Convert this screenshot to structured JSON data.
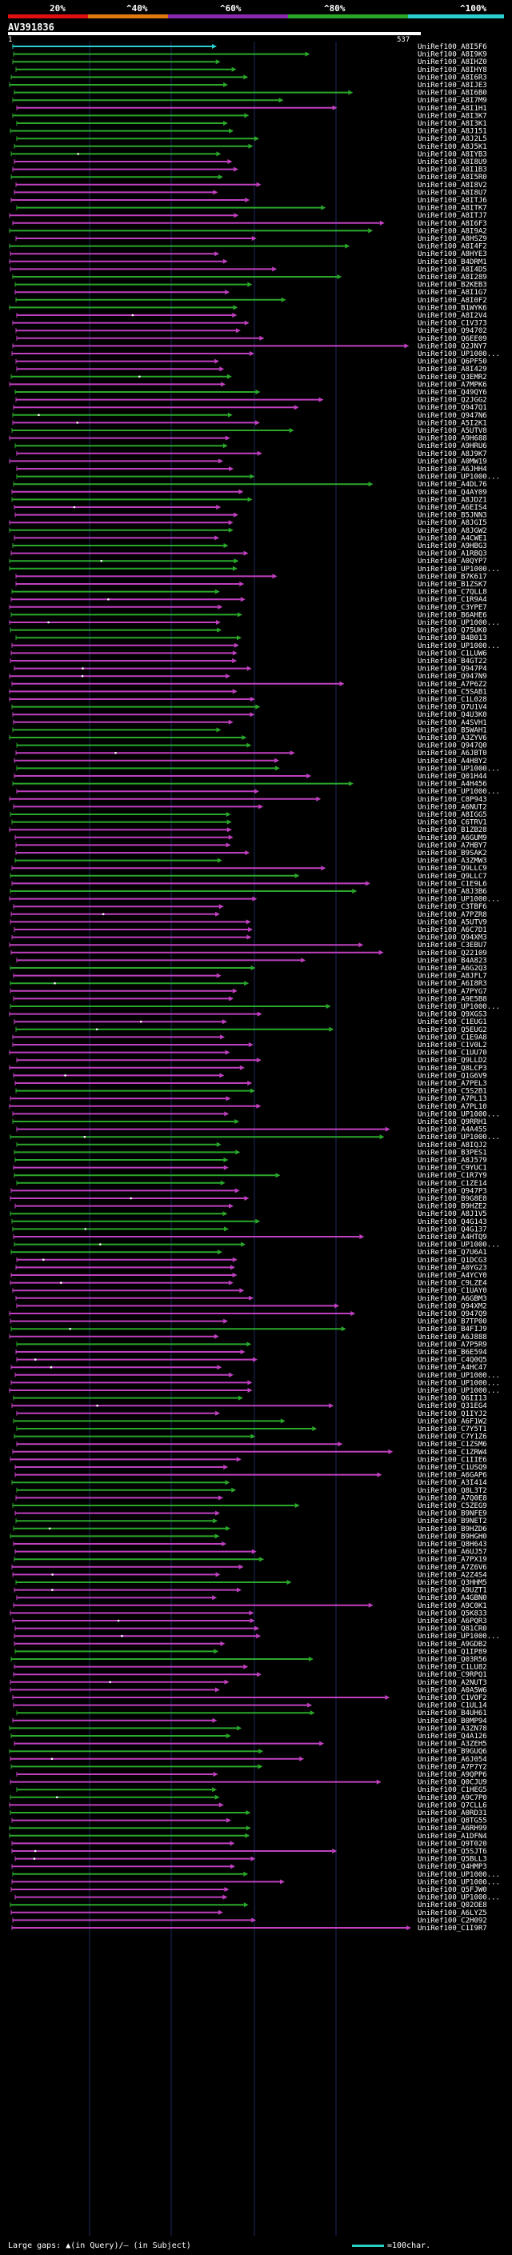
{
  "title": "AV391836",
  "legend": {
    "labels": [
      "20%",
      "^40%",
      "^60%",
      "^80%",
      "^100%"
    ],
    "colors": [
      "#e01010",
      "#e07a10",
      "#8a2ab0",
      "#2aa82a",
      "#2ad0d0"
    ]
  },
  "scale": {
    "start": "1",
    "end": "537"
  },
  "footer": {
    "left": "Large gaps: ▲(in Query)/— (in Subject)",
    "right": "=100char."
  },
  "hits": [
    "UniRef100_A8I5F6",
    "UniRef100_A8I9K9",
    "UniRef100_A8IHZ0",
    "UniRef100_A8IHY8",
    "UniRef100_A8I6R3",
    "UniRef100_A8IJE3",
    "UniRef100_A8I6B0",
    "UniRef100_A8I7M9",
    "UniRef100_A8I1H1",
    "UniRef100_A8I3K7",
    "UniRef100_A8I3K1",
    "UniRef100_A8J151",
    "UniRef100_A8J2L5",
    "UniRef100_A8J5K1",
    "UniRef100_A8IYB3",
    "UniRef100_A8I8U9",
    "UniRef100_A8I1B3",
    "UniRef100_A8I5R0",
    "UniRef100_A8I8V2",
    "UniRef100_A8I8U7",
    "UniRef100_A8ITJ6",
    "UniRef100_A8ITK7",
    "UniRef100_A8ITJ7",
    "UniRef100_A8I6F3",
    "UniRef100_A8I9A2",
    "UniRef100_A8HSZ9",
    "UniRef100_A8I4F2",
    "UniRef100_A8HYE3",
    "UniRef100_B4DRM1",
    "UniRef100_A8I4D5",
    "UniRef100_A8I289",
    "UniRef100_B2KEB3",
    "UniRef100_A8I1G7",
    "UniRef100_A8I0F2",
    "UniRef100_B1WYK6",
    "UniRef100_A8I2V4",
    "UniRef100_C1V373",
    "UniRef100_Q94702",
    "UniRef100_Q6EE09",
    "UniRef100_Q2JNY7",
    "UniRef100_UP1000...",
    "UniRef100_Q6PF50",
    "UniRef100_A8I429",
    "UniRef100_Q3EMR2",
    "UniRef100_A7MPK6",
    "UniRef100_Q49QY6",
    "UniRef100_Q2JGG2",
    "UniRef100_Q947Q1",
    "UniRef100_Q947N6",
    "UniRef100_A5I2K1",
    "UniRef100_A5UTV8",
    "UniRef100_A9H688",
    "UniRef100_A9HRU6",
    "UniRef100_A8J9K7",
    "UniRef100_A0MW19",
    "UniRef100_A6JHH4",
    "UniRef100_UP1000...",
    "UniRef100_A4DL76",
    "UniRef100_Q4AY09",
    "UniRef100_A8JDZ1",
    "UniRef100_A6EIS4",
    "UniRef100_B5JNN3",
    "UniRef100_A8JGI5",
    "UniRef100_A8JGW2",
    "UniRef100_A4CWE1",
    "UniRef100_A9HBG3",
    "UniRef100_A1RBQ3",
    "UniRef100_A0QYP7",
    "UniRef100_UP1000...",
    "UniRef100_B7K617",
    "UniRef100_B1ZSK7",
    "UniRef100_C7QLL8",
    "UniRef100_C1R9A4",
    "UniRef100_C3YPE7",
    "UniRef100_B6AHE6",
    "UniRef100_UP1000...",
    "UniRef100_Q75UK0",
    "UniRef100_B4B013",
    "UniRef100_UP1000...",
    "UniRef100_C1LUW6",
    "UniRef100_B4GT22",
    "UniRef100_Q947P4",
    "UniRef100_Q947N9",
    "UniRef100_A7P6Z2",
    "UniRef100_C5SAB1",
    "UniRef100_C1L028",
    "UniRef100_Q7U1V4",
    "UniRef100_Q4U3K0",
    "UniRef100_A4SVH1",
    "UniRef100_B5WAH1",
    "UniRef100_A3ZYV6",
    "UniRef100_Q947Q0",
    "UniRef100_A6JBT0",
    "UniRef100_A4H8Y2",
    "UniRef100_UP1000...",
    "UniRef100_Q01H44",
    "UniRef100_A4H456",
    "UniRef100_UP1000...",
    "UniRef100_C8P943",
    "UniRef100_A6NUT2",
    "UniRef100_A8IGG5",
    "UniRef100_C6TRV1",
    "UniRef100_B1ZB28",
    "UniRef100_A6GUM9",
    "UniRef100_A7HBY7",
    "UniRef100_B9SAK2",
    "UniRef100_A3ZMW3",
    "UniRef100_Q9LLC9",
    "UniRef100_Q9LLC7",
    "UniRef100_C1E9L6",
    "UniRef100_A8J3B6",
    "UniRef100_UP1000...",
    "UniRef100_C3TBF6",
    "UniRef100_A7PZR8",
    "UniRef100_A5UTV9",
    "UniRef100_A6C7D1",
    "UniRef100_Q94XM3",
    "UniRef100_C3EBU7",
    "UniRef100_Q22109",
    "UniRef100_B4A823",
    "UniRef100_A6G2Q3",
    "UniRef100_A8JFL7",
    "UniRef100_A6I8R3",
    "UniRef100_A7PYG7",
    "UniRef100_A9E5B8",
    "UniRef100_UP1000...",
    "UniRef100_Q9XGS3",
    "UniRef100_C1EUG1",
    "UniRef100_Q5EUG2",
    "UniRef100_C1E9A8",
    "UniRef100_C1V0L2",
    "UniRef100_C1UU70",
    "UniRef100_Q9LLD2",
    "UniRef100_Q8LCP3",
    "UniRef100_Q1G6V9",
    "UniRef100_A7PEL3",
    "UniRef100_C5S2B1",
    "UniRef100_A7PL13",
    "UniRef100_A7PL10",
    "UniRef100_UP1000...",
    "UniRef100_Q9RRH1",
    "UniRef100_A4A455",
    "UniRef100_UP1000...",
    "UniRef100_A8IQJ2",
    "UniRef100_B3PES1",
    "UniRef100_A8J579",
    "UniRef100_C9YUC1",
    "UniRef100_C1R7Y9",
    "UniRef100_C1ZE14",
    "UniRef100_Q947P3",
    "UniRef100_B9G8E8",
    "UniRef100_B9HZE2",
    "UniRef100_A8J1V5",
    "UniRef100_Q4G143",
    "UniRef100_Q4G137",
    "UniRef100_A4HTQ9",
    "UniRef100_UP1000...",
    "UniRef100_Q7U6A1",
    "UniRef100_Q1DCG3",
    "UniRef100_A0YG23",
    "UniRef100_A4YCY0",
    "UniRef100_C9LZE4",
    "UniRef100_C1UAY0",
    "UniRef100_A6GBM3",
    "UniRef100_Q94XM2",
    "UniRef100_Q947Q9",
    "UniRef100_B7TP00",
    "UniRef100_B4FIJ9",
    "UniRef100_A6J888",
    "UniRef100_A7P5R9",
    "UniRef100_B6E594",
    "UniRef100_C4Q0Q5",
    "UniRef100_A4HC47",
    "UniRef100_UP1000...",
    "UniRef100_UP1000...",
    "UniRef100_UP1000...",
    "UniRef100_Q6II13",
    "UniRef100_Q31EG4",
    "UniRef100_Q1IYJ2",
    "UniRef100_A6F1W2",
    "UniRef100_C7Y5T1",
    "UniRef100_C7Y1Z6",
    "UniRef100_C1ZSM6",
    "UniRef100_C1ZRW4",
    "UniRef100_C1IIE6",
    "UniRef100_C1USQ9",
    "UniRef100_A6GAP6",
    "UniRef100_A3I414",
    "UniRef100_Q8L3T2",
    "UniRef100_A7Q0E8",
    "UniRef100_C5ZEG9",
    "UniRef100_B9NFE9",
    "UniRef100_B9NET2",
    "UniRef100_B9HZD6",
    "UniRef100_B9HGH0",
    "UniRef100_Q8H643",
    "UniRef100_A6UJ57",
    "UniRef100_A7PX19",
    "UniRef100_A7Z6V6",
    "UniRef100_A2Z4S4",
    "UniRef100_Q3HHM5",
    "UniRef100_A9UZT1",
    "UniRef100_A4GBN0",
    "UniRef100_A9C0K1",
    "UniRef100_Q5K833",
    "UniRef100_A6PQR3",
    "UniRef100_Q81CR0",
    "UniRef100_UP1000...",
    "UniRef100_A9GDB2",
    "UniRef100_Q1IP89",
    "UniRef100_Q03R56",
    "UniRef100_C1LU82",
    "UniRef100_C9RPQ1",
    "UniRef100_A2NUT3",
    "UniRef100_A0A5W6",
    "UniRef100_C1VOF2",
    "UniRef100_C1UL14",
    "UniRef100_B4UH61",
    "UniRef100_B0MP94",
    "UniRef100_A3ZN78",
    "UniRef100_Q4A126",
    "UniRef100_A3ZEH5",
    "UniRef100_B9GUQ6",
    "UniRef100_A6J054",
    "UniRef100_A7P7Y2",
    "UniRef100_A9QPP6",
    "UniRef100_Q0CJU9",
    "UniRef100_C1HEG5",
    "UniRef100_A9C7P0",
    "UniRef100_Q7CLL6",
    "UniRef100_A0RD31",
    "UniRef100_Q8TG55",
    "UniRef100_A6RH99",
    "UniRef100_A1DFN4",
    "UniRef100_Q9T020",
    "UniRef100_Q5SJT6",
    "UniRef100_Q5BLL3",
    "UniRef100_Q4HMP3",
    "UniRef100_UP1000...",
    "UniRef100_UP1000...",
    "UniRef100_Q5FJW0",
    "UniRef100_UP1000...",
    "UniRef100_Q02OE8",
    "UniRef100_A6LYZ5",
    "UniRef100_C2H092",
    "UniRef100_C1I9R7"
  ]
}
